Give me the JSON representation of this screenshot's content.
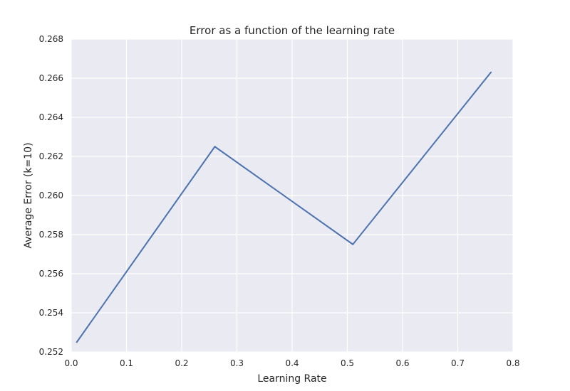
{
  "chart_data": {
    "type": "line",
    "title": "Error as a function of the learning rate",
    "xlabel": "Learning Rate",
    "ylabel": "Average Error (k=10)",
    "xlim": [
      0.0,
      0.8
    ],
    "ylim": [
      0.252,
      0.268
    ],
    "x_ticks": [
      "0.0",
      "0.1",
      "0.2",
      "0.3",
      "0.4",
      "0.5",
      "0.6",
      "0.7",
      "0.8"
    ],
    "y_ticks": [
      "0.252",
      "0.254",
      "0.256",
      "0.258",
      "0.260",
      "0.262",
      "0.264",
      "0.266",
      "0.268"
    ],
    "grid": true,
    "legend": false,
    "series": [
      {
        "color": "#4C72B0",
        "x": [
          0.01,
          0.26,
          0.51,
          0.76
        ],
        "y": [
          0.2525,
          0.2625,
          0.2575,
          0.2663
        ]
      }
    ]
  }
}
